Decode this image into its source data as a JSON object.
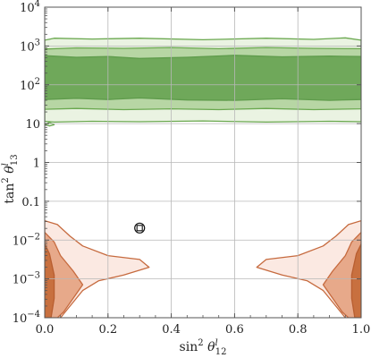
{
  "chart_data": {
    "type": "contour",
    "x_axis": {
      "label_main": "sin",
      "label_sup": "2",
      "label_symbol": "θ",
      "label_symbol_sup": "l",
      "label_sub": "12",
      "scale": "linear",
      "range": [
        0.0,
        1.0
      ],
      "ticks": [
        {
          "value": 0.0,
          "label": "0.0"
        },
        {
          "value": 0.2,
          "label": "0.2"
        },
        {
          "value": 0.4,
          "label": "0.4"
        },
        {
          "value": 0.6,
          "label": "0.6"
        },
        {
          "value": 0.8,
          "label": "0.8"
        },
        {
          "value": 1.0,
          "label": "1.0"
        }
      ]
    },
    "y_axis": {
      "label_main": "tan",
      "label_sup": "2",
      "label_symbol": "θ",
      "label_symbol_sup": "l",
      "label_sub": "13",
      "scale": "log",
      "range": [
        -4,
        4
      ],
      "ticks": [
        {
          "exp": 4,
          "base": "10",
          "sup": "4"
        },
        {
          "exp": 3,
          "base": "10",
          "sup": "3"
        },
        {
          "exp": 2,
          "base": "10",
          "sup": "2"
        },
        {
          "exp": 1,
          "base": "10",
          "sup": ""
        },
        {
          "exp": 0,
          "base": "1",
          "sup": ""
        },
        {
          "exp": -1,
          "base": "0.1",
          "sup": ""
        },
        {
          "exp": -2,
          "base": "10",
          "sup": "−2"
        },
        {
          "exp": -3,
          "base": "10",
          "sup": "−3"
        },
        {
          "exp": -4,
          "base": "10",
          "sup": "−4"
        }
      ]
    },
    "grid": true,
    "marker": {
      "x": 0.3,
      "log10_y": -1.69,
      "shape": "open-circle-square"
    },
    "regions": [
      {
        "group": "green",
        "level": 1,
        "fill": "#eaf3e2",
        "stroke": "#6aa84f",
        "polygons": [
          [
            [
              0.0,
              3.15
            ],
            [
              0.03,
              3.2
            ],
            [
              0.15,
              3.18
            ],
            [
              0.3,
              3.2
            ],
            [
              0.5,
              3.16
            ],
            [
              0.7,
              3.2
            ],
            [
              0.85,
              3.17
            ],
            [
              0.95,
              3.21
            ],
            [
              1.0,
              3.15
            ],
            [
              1.0,
              1.05
            ],
            [
              0.9,
              1.06
            ],
            [
              0.7,
              1.04
            ],
            [
              0.5,
              1.07
            ],
            [
              0.3,
              1.05
            ],
            [
              0.15,
              1.06
            ],
            [
              0.03,
              1.04
            ],
            [
              0.0,
              1.06
            ]
          ],
          [
            [
              0.0,
              0.98
            ],
            [
              0.015,
              1.03
            ],
            [
              0.03,
              0.97
            ],
            [
              0.015,
              0.94
            ]
          ]
        ]
      },
      {
        "group": "green",
        "level": 2,
        "fill": "#b7d6a4",
        "stroke": "#6aa84f",
        "polygons": [
          [
            [
              0.0,
              2.92
            ],
            [
              0.1,
              2.95
            ],
            [
              0.25,
              2.94
            ],
            [
              0.4,
              2.96
            ],
            [
              0.55,
              2.93
            ],
            [
              0.7,
              2.96
            ],
            [
              0.85,
              2.94
            ],
            [
              1.0,
              2.93
            ],
            [
              1.0,
              1.38
            ],
            [
              0.85,
              1.36
            ],
            [
              0.7,
              1.39
            ],
            [
              0.55,
              1.36
            ],
            [
              0.4,
              1.38
            ],
            [
              0.25,
              1.36
            ],
            [
              0.1,
              1.39
            ],
            [
              0.0,
              1.37
            ]
          ]
        ]
      },
      {
        "group": "green",
        "level": 3,
        "fill": "#6fa85a",
        "stroke": "#5e9b4b",
        "polygons": [
          [
            [
              0.0,
              2.75
            ],
            [
              0.1,
              2.71
            ],
            [
              0.2,
              2.73
            ],
            [
              0.3,
              2.68
            ],
            [
              0.45,
              2.71
            ],
            [
              0.6,
              2.76
            ],
            [
              0.75,
              2.72
            ],
            [
              0.9,
              2.74
            ],
            [
              1.0,
              2.73
            ],
            [
              1.0,
              1.62
            ],
            [
              0.9,
              1.6
            ],
            [
              0.75,
              1.64
            ],
            [
              0.6,
              1.6
            ],
            [
              0.45,
              1.61
            ],
            [
              0.3,
              1.66
            ],
            [
              0.2,
              1.62
            ],
            [
              0.1,
              1.65
            ],
            [
              0.0,
              1.62
            ]
          ]
        ]
      },
      {
        "group": "orange",
        "level": 1,
        "fill": "#fbe9e2",
        "stroke": "#c66a3e",
        "polygons": [
          [
            [
              0.0,
              -1.5
            ],
            [
              0.04,
              -1.6
            ],
            [
              0.08,
              -1.9
            ],
            [
              0.12,
              -2.15
            ],
            [
              0.2,
              -2.4
            ],
            [
              0.3,
              -2.5
            ],
            [
              0.33,
              -2.7
            ],
            [
              0.25,
              -2.9
            ],
            [
              0.17,
              -3.05
            ],
            [
              0.12,
              -3.3
            ],
            [
              0.08,
              -3.7
            ],
            [
              0.05,
              -4.0
            ],
            [
              0.0,
              -4.0
            ]
          ],
          [
            [
              1.0,
              -1.5
            ],
            [
              0.96,
              -1.6
            ],
            [
              0.92,
              -1.9
            ],
            [
              0.88,
              -2.15
            ],
            [
              0.8,
              -2.4
            ],
            [
              0.7,
              -2.5
            ],
            [
              0.67,
              -2.7
            ],
            [
              0.75,
              -2.9
            ],
            [
              0.83,
              -3.05
            ],
            [
              0.88,
              -3.3
            ],
            [
              0.92,
              -3.7
            ],
            [
              0.95,
              -4.0
            ],
            [
              1.0,
              -4.0
            ]
          ]
        ]
      },
      {
        "group": "orange",
        "level": 2,
        "fill": "#e7a98a",
        "stroke": "#c66a3e",
        "polygons": [
          [
            [
              0.0,
              -1.8
            ],
            [
              0.03,
              -2.05
            ],
            [
              0.05,
              -2.4
            ],
            [
              0.09,
              -2.8
            ],
            [
              0.12,
              -3.15
            ],
            [
              0.09,
              -3.5
            ],
            [
              0.06,
              -3.85
            ],
            [
              0.04,
              -4.0
            ],
            [
              0.0,
              -4.0
            ]
          ],
          [
            [
              1.0,
              -1.8
            ],
            [
              0.97,
              -2.05
            ],
            [
              0.95,
              -2.4
            ],
            [
              0.91,
              -2.8
            ],
            [
              0.88,
              -3.15
            ],
            [
              0.91,
              -3.5
            ],
            [
              0.94,
              -3.85
            ],
            [
              0.96,
              -4.0
            ],
            [
              1.0,
              -4.0
            ]
          ]
        ]
      },
      {
        "group": "orange",
        "level": 3,
        "fill": "#c8703f",
        "stroke": "#b85e30",
        "polygons": [
          [
            [
              0.0,
              -2.1
            ],
            [
              0.015,
              -2.35
            ],
            [
              0.03,
              -2.9
            ],
            [
              0.03,
              -3.5
            ],
            [
              0.02,
              -4.0
            ],
            [
              0.0,
              -4.0
            ]
          ],
          [
            [
              1.0,
              -2.1
            ],
            [
              0.985,
              -2.35
            ],
            [
              0.97,
              -2.9
            ],
            [
              0.97,
              -3.5
            ],
            [
              0.98,
              -4.0
            ],
            [
              1.0,
              -4.0
            ]
          ]
        ]
      }
    ]
  }
}
